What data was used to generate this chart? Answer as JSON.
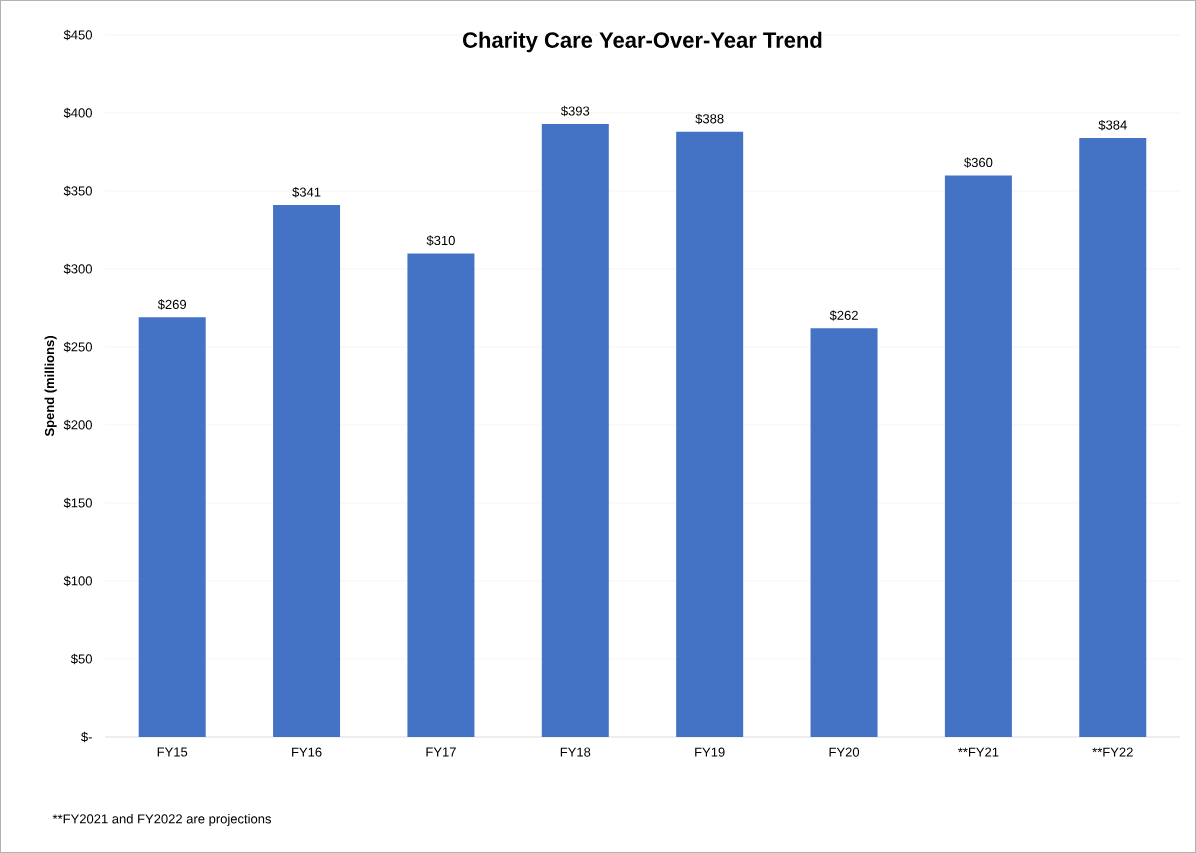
{
  "chart_data": {
    "type": "bar",
    "title": "Charity Care Year-Over-Year Trend",
    "ylabel": "Spend (millions)",
    "categories": [
      "FY15",
      "FY16",
      "FY17",
      "FY18",
      "FY19",
      "FY20",
      "**FY21",
      "**FY22"
    ],
    "values": [
      269,
      341,
      310,
      393,
      388,
      262,
      360,
      384
    ],
    "value_labels": [
      "$269",
      "$341",
      "$310",
      "$393",
      "$388",
      "$262",
      "$360",
      "$384"
    ],
    "color": "#4472c4",
    "ylim": [
      0,
      450
    ],
    "yticks": [
      {
        "value": 0,
        "label": "$-"
      },
      {
        "value": 50,
        "label": "$50"
      },
      {
        "value": 100,
        "label": "$100"
      },
      {
        "value": 150,
        "label": "$150"
      },
      {
        "value": 200,
        "label": "$200"
      },
      {
        "value": 250,
        "label": "$250"
      },
      {
        "value": 300,
        "label": "$300"
      },
      {
        "value": 350,
        "label": "$350"
      },
      {
        "value": 400,
        "label": "$400"
      },
      {
        "value": 450,
        "label": "$450"
      }
    ],
    "grid": "y",
    "annotations": [
      "**FY2021 and FY2022 are projections"
    ]
  }
}
